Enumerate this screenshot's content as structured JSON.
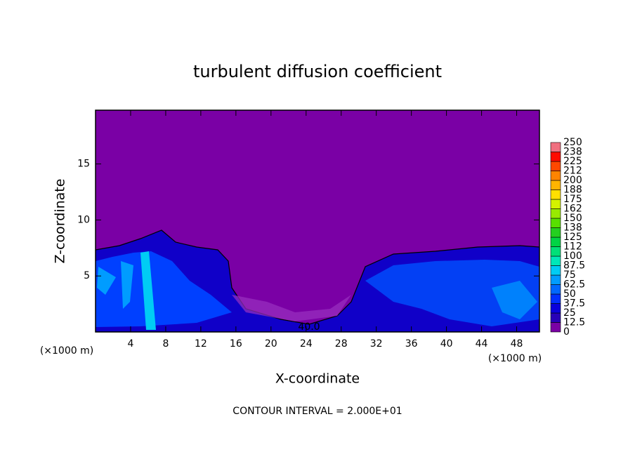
{
  "chart_data": {
    "type": "contour",
    "title": "turbulent diffusion coefficient",
    "x_label": "X-coordinate",
    "y_label": "Z-coordinate",
    "x_unit": "(×1000 m)",
    "footer": "CONTOUR INTERVAL = 2.000E+01",
    "contour_label": "40.0",
    "xlim": [
      0,
      50.6
    ],
    "xticks": [
      4,
      8,
      12,
      16,
      20,
      24,
      28,
      32,
      36,
      40,
      44,
      48
    ],
    "ylim": [
      0,
      19.8
    ],
    "yticks": [
      5,
      10,
      15
    ],
    "colorbar": {
      "lim": [
        0,
        250
      ],
      "levels": [
        0,
        12.5,
        25,
        37.5,
        50,
        62.5,
        75,
        87.5,
        100,
        112.5,
        125,
        137.5,
        150,
        162.5,
        175,
        187.5,
        200,
        212.5,
        225,
        237.5,
        250
      ],
      "colors": [
        "#7a00a5",
        "#2800b8",
        "#0a00dc",
        "#0030ff",
        "#0068ff",
        "#009cff",
        "#00ccf4",
        "#00e8b8",
        "#00e078",
        "#00d444",
        "#24d020",
        "#58e000",
        "#98ea00",
        "#d4f200",
        "#ffe000",
        "#ffb400",
        "#ff8400",
        "#ff4800",
        "#ff0a00",
        "#f07080"
      ],
      "ticks": [
        0,
        12.5,
        25,
        37.5,
        50,
        62.5,
        75,
        87.5,
        100,
        {
          "value": 112.5,
          "label": "112"
        },
        125,
        {
          "value": 137.5,
          "label": "138"
        },
        150,
        {
          "value": 162.5,
          "label": "162"
        },
        175,
        {
          "value": 187.5,
          "label": "188"
        },
        200,
        {
          "value": 212.5,
          "label": "212"
        },
        225,
        {
          "value": 237.5,
          "label": "238"
        },
        250
      ]
    }
  }
}
